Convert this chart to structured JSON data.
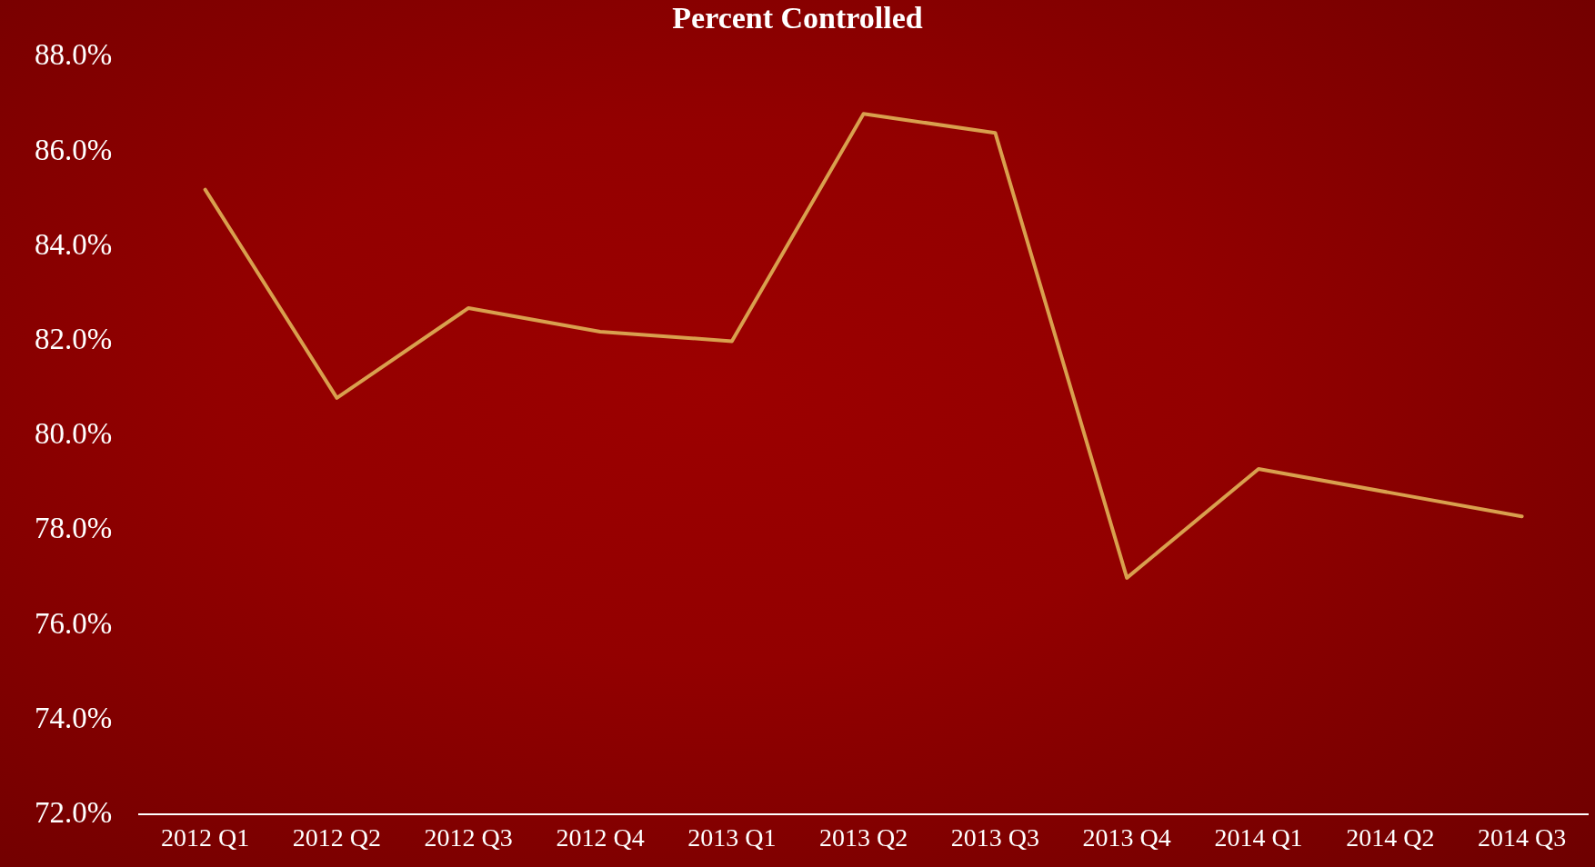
{
  "chart_data": {
    "type": "line",
    "title": "Percent Controlled",
    "categories": [
      "2012 Q1",
      "2012 Q2",
      "2012 Q3",
      "2012 Q4",
      "2013 Q1",
      "2013 Q2",
      "2013 Q3",
      "2013 Q4",
      "2014 Q1",
      "2014 Q2",
      "2014 Q3"
    ],
    "series": [
      {
        "color": "#d9a04e",
        "values": [
          85.2,
          80.8,
          82.7,
          82.2,
          82.0,
          86.8,
          86.4,
          77.0,
          79.3,
          78.8,
          78.3
        ]
      }
    ],
    "ylim": [
      72,
      88
    ],
    "yticks": [
      {
        "value": 72,
        "label": "72.0%"
      },
      {
        "value": 74,
        "label": "74.0%"
      },
      {
        "value": 76,
        "label": "76.0%"
      },
      {
        "value": 78,
        "label": "78.0%"
      },
      {
        "value": 80,
        "label": "80.0%"
      },
      {
        "value": 82,
        "label": "82.0%"
      },
      {
        "value": 84,
        "label": "84.0%"
      },
      {
        "value": 86,
        "label": "86.0%"
      },
      {
        "value": 88,
        "label": "88.0%"
      }
    ],
    "grid": false,
    "legend": false,
    "marker": "none",
    "line_style": "solid"
  }
}
